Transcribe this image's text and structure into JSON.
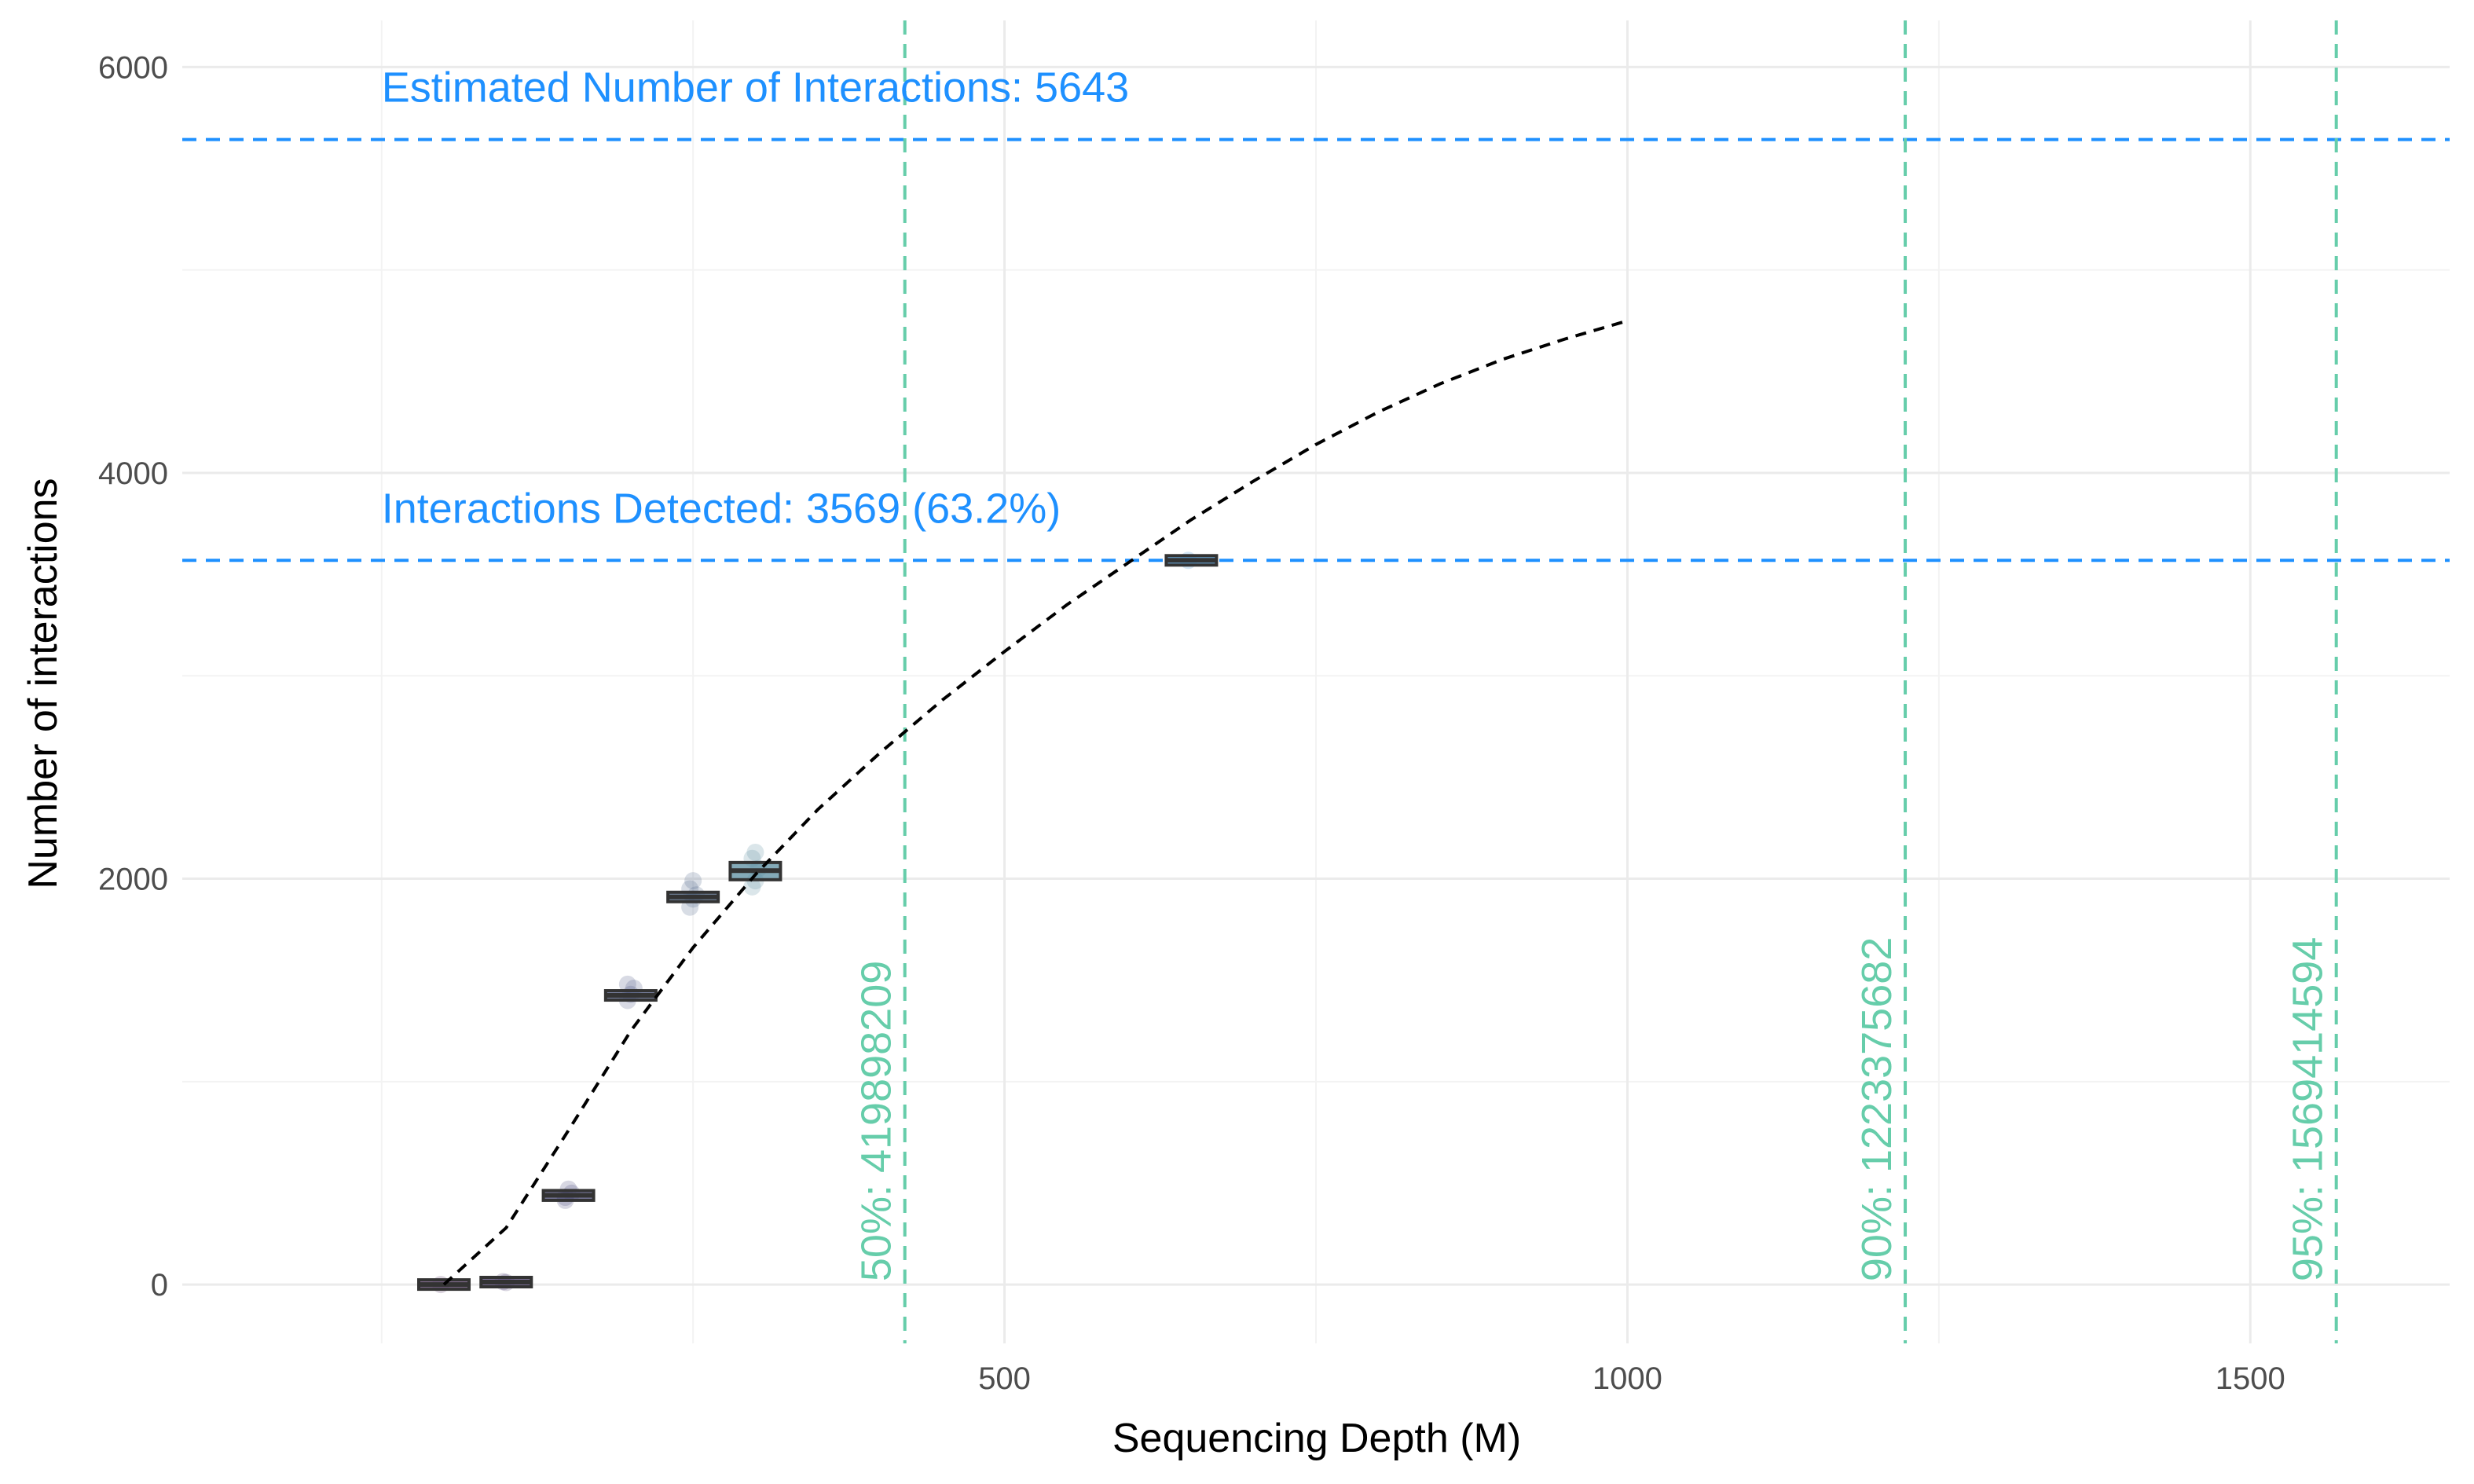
{
  "chart_data": {
    "type": "scatter",
    "xlabel": "Sequencing Depth (M)",
    "ylabel": "Number of interactions",
    "xlim": [
      -160,
      1660
    ],
    "ylim": [
      -290,
      6230
    ],
    "x_ticks": [
      500,
      1000,
      1500
    ],
    "x_tick_labels": [
      "500",
      "1000",
      "1500"
    ],
    "y_ticks": [
      0,
      2000,
      4000,
      6000
    ],
    "y_tick_labels": [
      "0",
      "2000",
      "4000",
      "6000"
    ],
    "grid": true,
    "legend": "none",
    "horizontal_reference_lines": [
      {
        "y": 5643,
        "label": "Estimated Number of Interactions: 5643",
        "color": "#1e90ff"
      },
      {
        "y": 3569,
        "label": "Interactions Detected: 3569 (63.2%)",
        "color": "#1e90ff"
      }
    ],
    "vertical_reference_lines": [
      {
        "x": 420,
        "label": "50%: 419898209",
        "color": "#66cdaa"
      },
      {
        "x": 1223,
        "label": "90%: 1223375682",
        "color": "#66cdaa"
      },
      {
        "x": 1569,
        "label": "95%: 1569414594",
        "color": "#66cdaa"
      }
    ],
    "boxplots": [
      {
        "x": 50,
        "q1": -5,
        "median": 0,
        "q3": 5,
        "fill": "#5a3d6b",
        "points": [
          0
        ]
      },
      {
        "x": 100,
        "q1": 5,
        "median": 12,
        "q3": 20,
        "fill": "#4f3f70",
        "points": [
          14,
          10
        ]
      },
      {
        "x": 150,
        "q1": 415,
        "median": 440,
        "q3": 460,
        "fill": "#4a4a7a",
        "points": [
          430,
          470,
          450,
          415
        ]
      },
      {
        "x": 200,
        "q1": 1410,
        "median": 1425,
        "q3": 1440,
        "fill": "#4c5882",
        "points": [
          1400,
          1430,
          1460,
          1480
        ]
      },
      {
        "x": 250,
        "q1": 1895,
        "median": 1910,
        "q3": 1925,
        "fill": "#4c6688",
        "points": [
          1860,
          1900,
          1920,
          1950,
          1990
        ]
      },
      {
        "x": 300,
        "q1": 1995,
        "median": 2040,
        "q3": 2080,
        "fill": "#5b8ea0",
        "points": [
          1960,
          1990,
          2050,
          2100,
          2130
        ]
      },
      {
        "x": 650,
        "q1": 3560,
        "median": 3569,
        "q3": 3578,
        "fill": "#3a8fd0",
        "points": [
          3569
        ]
      }
    ],
    "fitted_curve": {
      "style": "dashed",
      "color": "#000000",
      "x": [
        50,
        100,
        150,
        200,
        250,
        300,
        350,
        400,
        450,
        500,
        550,
        600,
        650,
        700,
        750,
        800,
        850,
        900,
        950,
        1000
      ],
      "y": [
        0,
        280,
        760,
        1250,
        1660,
        2020,
        2340,
        2620,
        2880,
        3120,
        3350,
        3560,
        3770,
        3960,
        4140,
        4300,
        4440,
        4560,
        4660,
        4750
      ]
    }
  }
}
